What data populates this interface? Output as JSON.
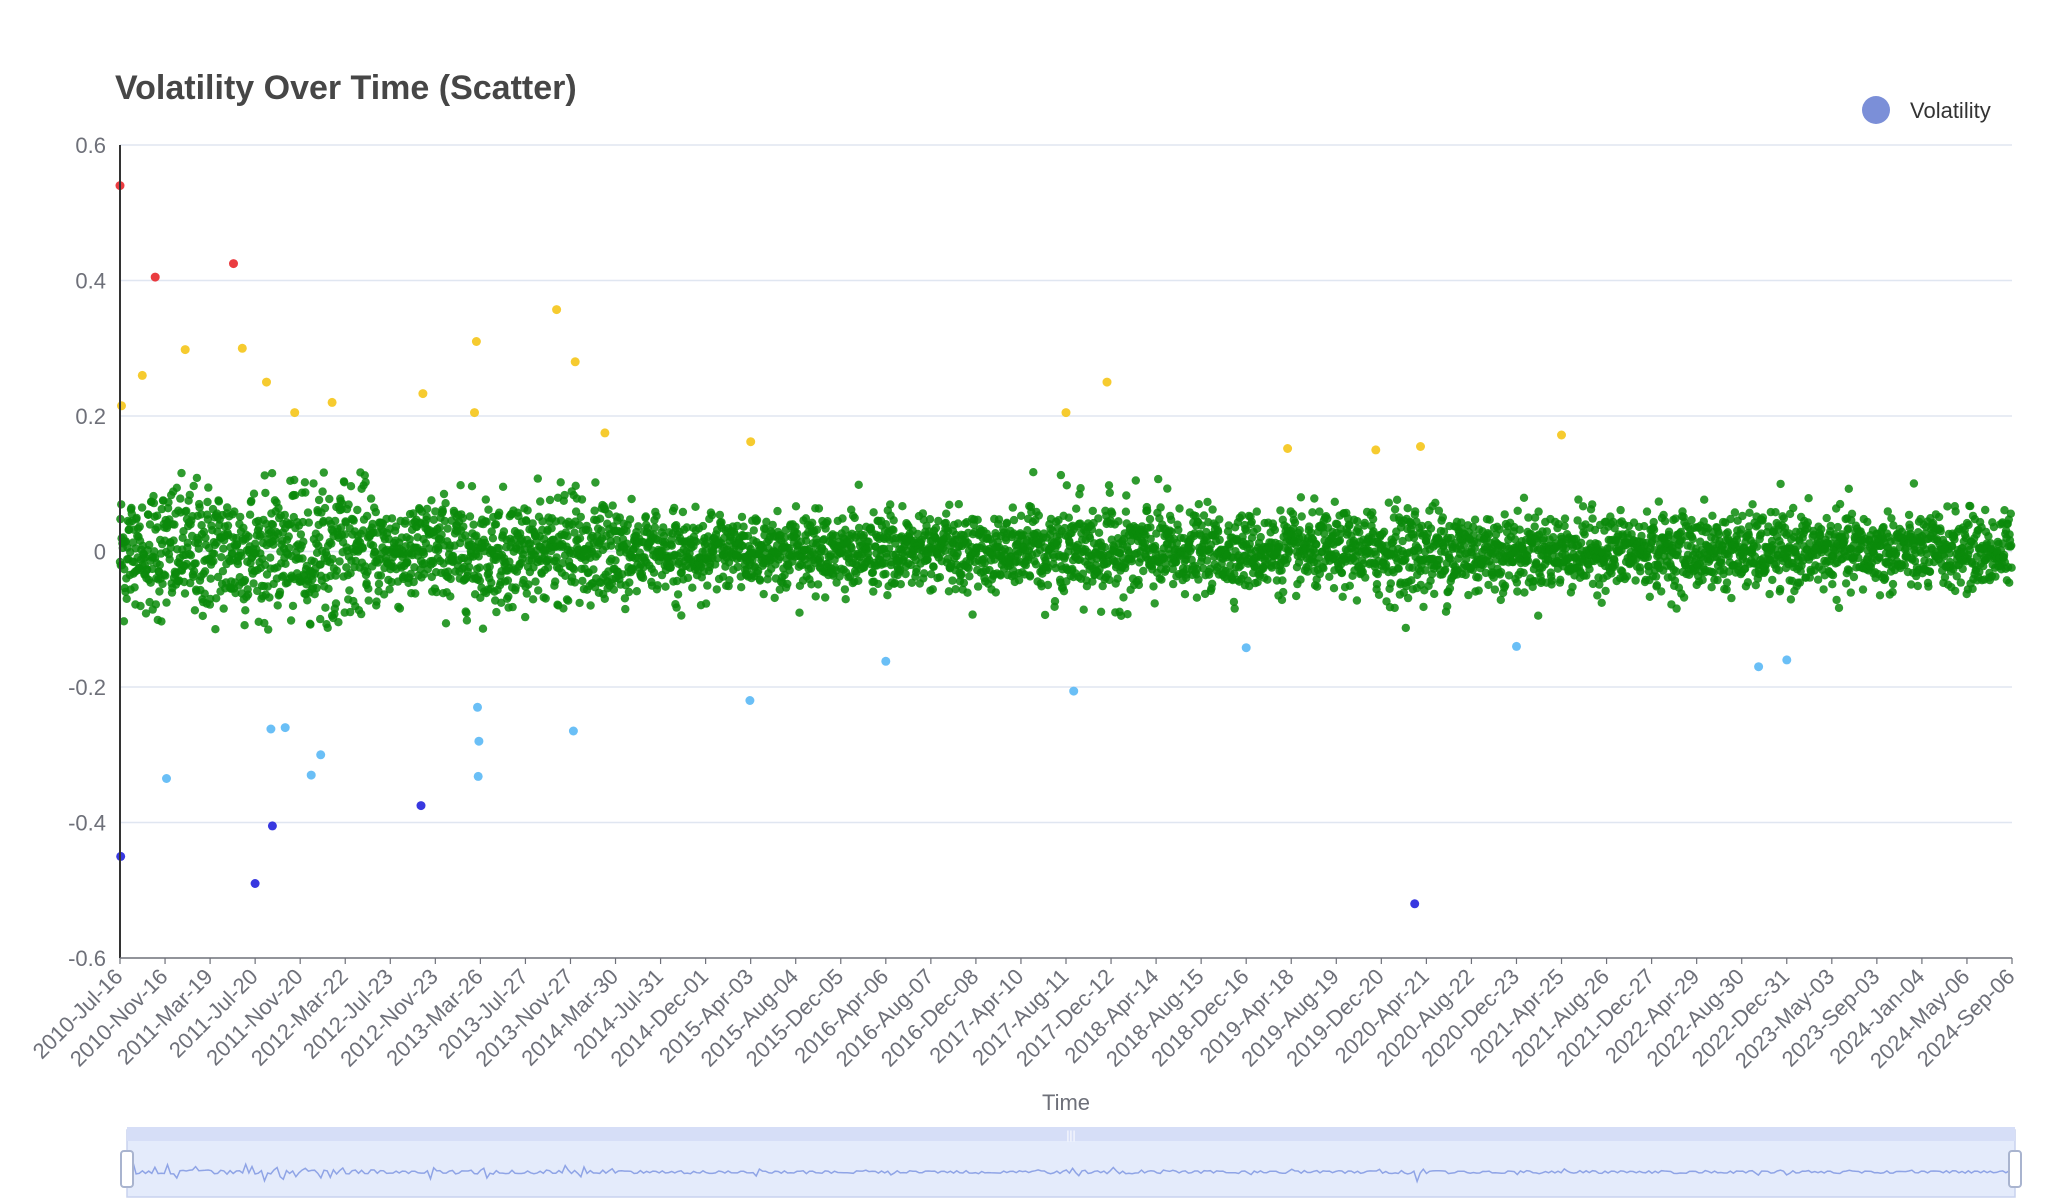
{
  "chart_data": {
    "type": "scatter",
    "title": "Volatility Over Time (Scatter)",
    "xlabel": "Time",
    "ylabel": "",
    "ylim": [
      -0.6,
      0.6
    ],
    "yticks": [
      "0.6",
      "0.4",
      "0.2",
      "0",
      "-0.2",
      "-0.4",
      "-0.6"
    ],
    "yticks_values": [
      0.6,
      0.4,
      0.2,
      0,
      -0.2,
      -0.4,
      -0.6
    ],
    "xlim": [
      "2010-07-16",
      "2024-09-06"
    ],
    "x_tick_labels": [
      "2010-Jul-16",
      "2010-Nov-16",
      "2011-Mar-19",
      "2011-Jul-20",
      "2011-Nov-20",
      "2012-Mar-22",
      "2012-Jul-23",
      "2012-Nov-23",
      "2013-Mar-26",
      "2013-Jul-27",
      "2013-Nov-27",
      "2014-Mar-30",
      "2014-Jul-31",
      "2014-Dec-01",
      "2015-Apr-03",
      "2015-Aug-04",
      "2015-Dec-05",
      "2016-Apr-06",
      "2016-Aug-07",
      "2016-Dec-08",
      "2017-Apr-10",
      "2017-Aug-11",
      "2017-Dec-12",
      "2018-Apr-14",
      "2018-Aug-15",
      "2018-Dec-16",
      "2019-Apr-18",
      "2019-Aug-19",
      "2019-Dec-20",
      "2020-Apr-21",
      "2020-Aug-22",
      "2020-Dec-23",
      "2021-Apr-25",
      "2021-Aug-26",
      "2021-Dec-27",
      "2022-Apr-29",
      "2022-Aug-30",
      "2022-Dec-31",
      "2023-May-03",
      "2023-Sep-03",
      "2024-Jan-04",
      "2024-May-06",
      "2024-Sep-06"
    ],
    "grid": true,
    "legend": {
      "position": "top-right",
      "entries": [
        {
          "name": "Volatility",
          "color": "#7b8fd8"
        }
      ]
    },
    "color_bands": [
      {
        "range": "> 0.4",
        "color": "#e8272b"
      },
      {
        "range": "0.12 to 0.4",
        "color": "#f5c518"
      },
      {
        "range": "-0.12 to 0.12",
        "color": "#0b8a0b"
      },
      {
        "range": "-0.35 to -0.12",
        "color": "#5ab8f5"
      },
      {
        "range": "< -0.35",
        "color": "#2222dd"
      }
    ],
    "series": [
      {
        "name": "Volatility",
        "notable_points": [
          {
            "x": "2010-07-16",
            "y": 0.54
          },
          {
            "x": "2010-07-18",
            "y": -0.45
          },
          {
            "x": "2010-10-20",
            "y": 0.405
          },
          {
            "x": "2011-05-22",
            "y": 0.425
          },
          {
            "x": "2011-07-20",
            "y": -0.49
          },
          {
            "x": "2011-09-05",
            "y": -0.405
          },
          {
            "x": "2012-10-15",
            "y": -0.375
          },
          {
            "x": "2020-03-20",
            "y": -0.52
          },
          {
            "x": "2013-10-20",
            "y": 0.357
          },
          {
            "x": "2013-03-15",
            "y": 0.31
          },
          {
            "x": "2013-12-10",
            "y": 0.28
          },
          {
            "x": "2011-06-15",
            "y": 0.3
          },
          {
            "x": "2011-01-10",
            "y": 0.298
          },
          {
            "x": "2010-09-15",
            "y": 0.26
          },
          {
            "x": "2011-08-20",
            "y": 0.25
          },
          {
            "x": "2017-12-01",
            "y": 0.25
          },
          {
            "x": "2012-10-20",
            "y": 0.233
          },
          {
            "x": "2012-02-15",
            "y": 0.22
          },
          {
            "x": "2010-07-20",
            "y": 0.215
          },
          {
            "x": "2011-11-05",
            "y": 0.205
          },
          {
            "x": "2017-08-11",
            "y": 0.205
          },
          {
            "x": "2013-03-10",
            "y": 0.205
          },
          {
            "x": "2014-03-01",
            "y": 0.175
          },
          {
            "x": "2021-04-25",
            "y": 0.172
          },
          {
            "x": "2015-04-03",
            "y": 0.162
          },
          {
            "x": "2020-04-05",
            "y": 0.155
          },
          {
            "x": "2019-04-08",
            "y": 0.152
          },
          {
            "x": "2019-12-05",
            "y": 0.15
          },
          {
            "x": "2010-11-20",
            "y": -0.335
          },
          {
            "x": "2013-03-20",
            "y": -0.332
          },
          {
            "x": "2011-12-20",
            "y": -0.33
          },
          {
            "x": "2012-01-15",
            "y": -0.3
          },
          {
            "x": "2013-03-22",
            "y": -0.28
          },
          {
            "x": "2013-12-05",
            "y": -0.265
          },
          {
            "x": "2011-09-01",
            "y": -0.262
          },
          {
            "x": "2011-10-10",
            "y": -0.26
          },
          {
            "x": "2013-03-18",
            "y": -0.23
          },
          {
            "x": "2015-04-01",
            "y": -0.22
          },
          {
            "x": "2017-09-01",
            "y": -0.206
          },
          {
            "x": "2022-10-15",
            "y": -0.17
          },
          {
            "x": "2022-12-31",
            "y": -0.16
          },
          {
            "x": "2020-12-23",
            "y": -0.14
          },
          {
            "x": "2018-12-16",
            "y": -0.142
          },
          {
            "x": "2016-04-06",
            "y": -0.162
          }
        ],
        "baseline_noise": {
          "mean": 0,
          "approx_range": [
            -0.12,
            0.12
          ],
          "count": 4800
        }
      }
    ],
    "data_zoom": {
      "start": "2010-07-16",
      "end": "2024-09-06"
    }
  }
}
